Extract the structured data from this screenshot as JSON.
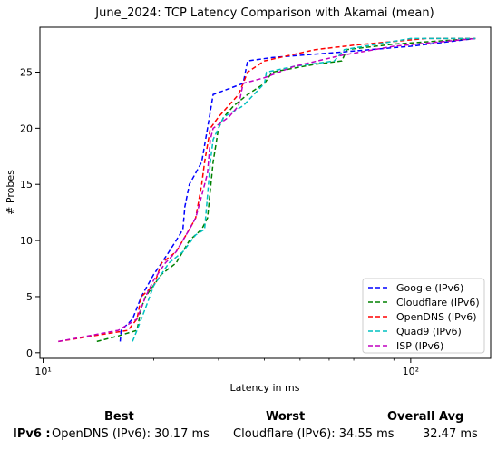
{
  "chart_data": {
    "type": "line",
    "title": "June_2024: TCP Latency Comparison with Akamai (mean)",
    "xlabel": "Latency in ms",
    "ylabel": "# Probes",
    "xscale": "log",
    "xlim": [
      9.8,
      165
    ],
    "ylim": [
      -0.5,
      29
    ],
    "x_ticks": [
      {
        "value": 10,
        "label": "10¹"
      },
      {
        "value": 100,
        "label": "10²"
      }
    ],
    "y_ticks": [
      0,
      5,
      10,
      15,
      20,
      25
    ],
    "grid": false,
    "legend": "bottom-right",
    "series": [
      {
        "name": "Google (IPv6)",
        "color": "#0000ff",
        "points": [
          [
            16.2,
            1
          ],
          [
            16.3,
            2
          ],
          [
            17.5,
            3
          ],
          [
            18,
            4
          ],
          [
            18.5,
            5
          ],
          [
            20,
            7
          ],
          [
            21,
            8
          ],
          [
            22,
            9
          ],
          [
            23,
            10
          ],
          [
            24,
            11
          ],
          [
            24.3,
            13
          ],
          [
            25,
            15
          ],
          [
            26,
            16
          ],
          [
            27,
            17
          ],
          [
            28,
            20
          ],
          [
            29,
            23
          ],
          [
            35,
            24
          ],
          [
            36,
            26
          ],
          [
            42,
            26.3
          ],
          [
            60,
            26.7
          ],
          [
            100,
            27.3
          ],
          [
            150,
            28
          ]
        ]
      },
      {
        "name": "Cloudflare (IPv6)",
        "color": "#008000",
        "points": [
          [
            14,
            1
          ],
          [
            16,
            1.5
          ],
          [
            18,
            2
          ],
          [
            18.5,
            4
          ],
          [
            19,
            5
          ],
          [
            21,
            7
          ],
          [
            23,
            8
          ],
          [
            25,
            10
          ],
          [
            27,
            11
          ],
          [
            28,
            12
          ],
          [
            29,
            17
          ],
          [
            30,
            20
          ],
          [
            31,
            21
          ],
          [
            33,
            22
          ],
          [
            36,
            23
          ],
          [
            40,
            24
          ],
          [
            42,
            25
          ],
          [
            55,
            25.7
          ],
          [
            65,
            26
          ],
          [
            67,
            27
          ],
          [
            90,
            27.5
          ],
          [
            150,
            28
          ]
        ]
      },
      {
        "name": "OpenDNS (IPv6)",
        "color": "#ff0000",
        "points": [
          [
            11,
            1
          ],
          [
            17,
            2
          ],
          [
            18,
            3
          ],
          [
            18.5,
            5
          ],
          [
            20,
            6
          ],
          [
            21,
            8
          ],
          [
            23,
            9
          ],
          [
            25,
            11
          ],
          [
            26,
            12
          ],
          [
            27,
            15
          ],
          [
            27.5,
            17
          ],
          [
            28.5,
            20
          ],
          [
            30,
            21
          ],
          [
            34,
            23
          ],
          [
            35,
            24
          ],
          [
            36,
            25
          ],
          [
            40,
            26
          ],
          [
            55,
            27
          ],
          [
            70,
            27.4
          ],
          [
            110,
            28
          ],
          [
            150,
            28
          ]
        ]
      },
      {
        "name": "Quad9 (IPv6)",
        "color": "#00c0c0",
        "points": [
          [
            17.5,
            1
          ],
          [
            18,
            2
          ],
          [
            19,
            4
          ],
          [
            20,
            6
          ],
          [
            22,
            8
          ],
          [
            24,
            9
          ],
          [
            26,
            10.5
          ],
          [
            27.5,
            11
          ],
          [
            28,
            14
          ],
          [
            28.5,
            17
          ],
          [
            29,
            19
          ],
          [
            31,
            21
          ],
          [
            35,
            22
          ],
          [
            40,
            24
          ],
          [
            40.5,
            25
          ],
          [
            48,
            25.5
          ],
          [
            62,
            26
          ],
          [
            66,
            27
          ],
          [
            100,
            28
          ],
          [
            150,
            28
          ]
        ]
      },
      {
        "name": "ISP (IPv6)",
        "color": "#c000c0",
        "points": [
          [
            11,
            1
          ],
          [
            16,
            2
          ],
          [
            18,
            3
          ],
          [
            19,
            5
          ],
          [
            20,
            6.5
          ],
          [
            21.5,
            8
          ],
          [
            23,
            9
          ],
          [
            25,
            11
          ],
          [
            26,
            12
          ],
          [
            27,
            14
          ],
          [
            28,
            16
          ],
          [
            28.5,
            19
          ],
          [
            29,
            20
          ],
          [
            32,
            21
          ],
          [
            34,
            22
          ],
          [
            35,
            24
          ],
          [
            40,
            24.5
          ],
          [
            48,
            25.5
          ],
          [
            65,
            26.5
          ],
          [
            90,
            27.3
          ],
          [
            150,
            28
          ]
        ]
      }
    ]
  },
  "summary": {
    "best_header": "Best",
    "worst_header": "Worst",
    "avg_header": "Overall Avg",
    "row_label": "IPv6 :",
    "best_value": "OpenDNS (IPv6): 30.17 ms",
    "worst_value": "Cloudflare (IPv6): 34.55 ms",
    "avg_value": "32.47 ms"
  }
}
